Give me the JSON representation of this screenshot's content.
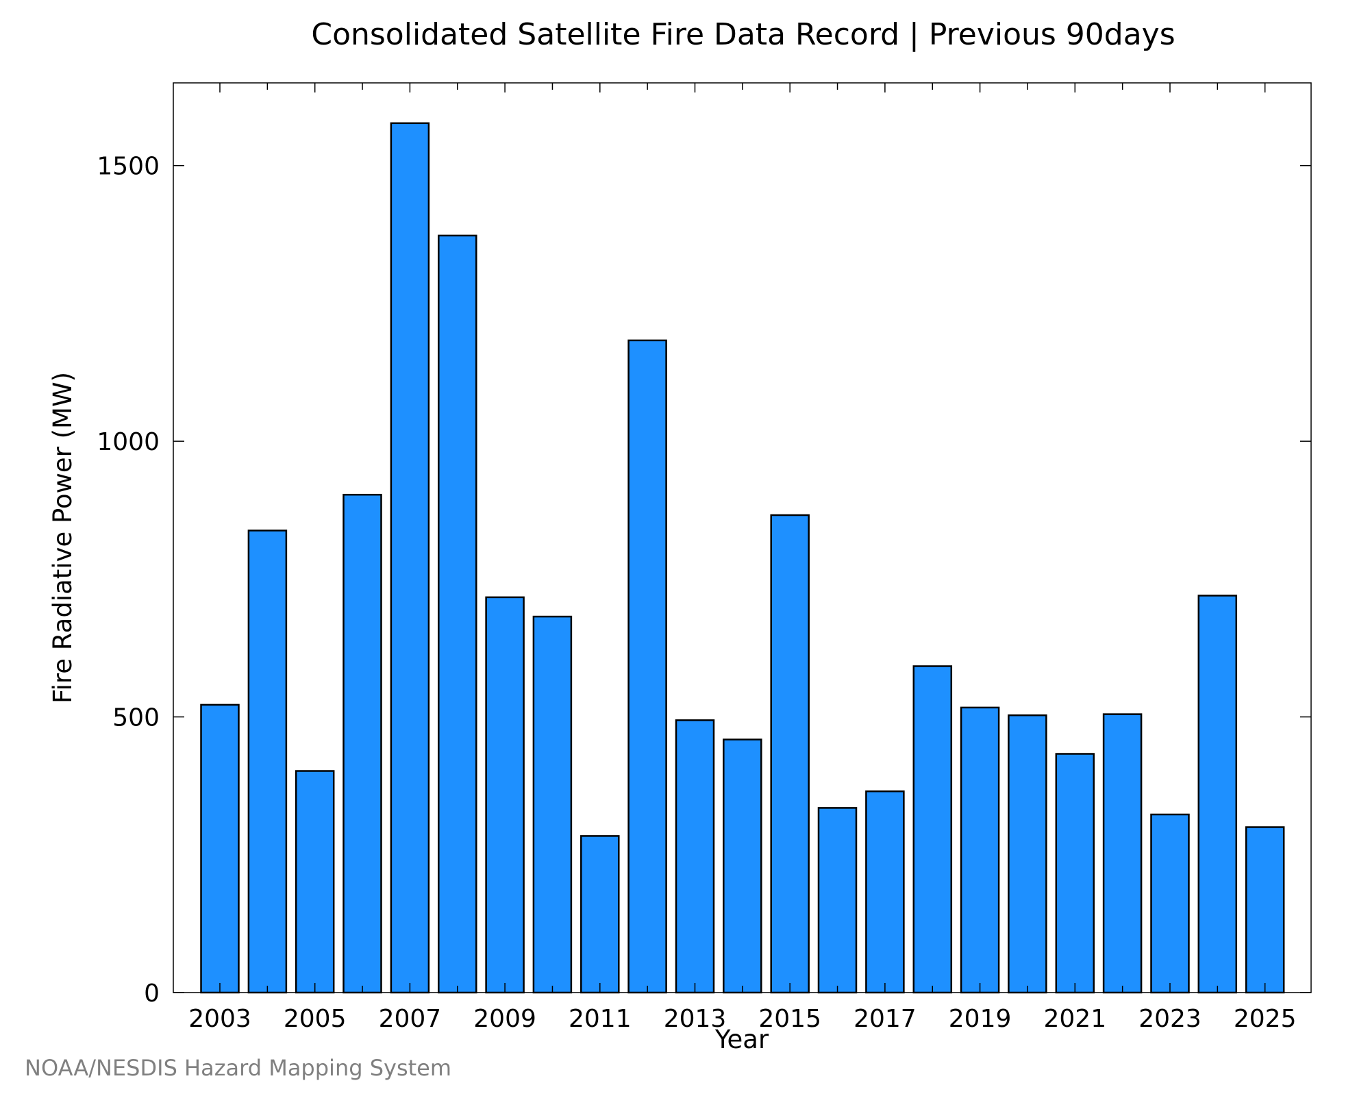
{
  "chart_data": {
    "type": "bar",
    "title": "Consolidated Satellite Fire Data Record | Previous 90days",
    "xlabel": "Year",
    "ylabel": "Fire Radiative Power (MW)",
    "categories": [
      "2003",
      "2004",
      "2005",
      "2006",
      "2007",
      "2008",
      "2009",
      "2010",
      "2011",
      "2012",
      "2013",
      "2014",
      "2015",
      "2016",
      "2017",
      "2018",
      "2019",
      "2020",
      "2021",
      "2022",
      "2023",
      "2024",
      "2025"
    ],
    "values": [
      522,
      838,
      402,
      903,
      1577,
      1373,
      717,
      682,
      284,
      1183,
      494,
      459,
      866,
      335,
      365,
      592,
      517,
      503,
      433,
      505,
      323,
      720,
      300
    ],
    "xtick_labels": [
      "2003",
      "2005",
      "2007",
      "2009",
      "2011",
      "2013",
      "2015",
      "2017",
      "2019",
      "2021",
      "2023",
      "2025"
    ],
    "yticks": [
      0,
      500,
      1000,
      1500
    ],
    "ylim": [
      0,
      1650
    ],
    "grid": false,
    "legend": "none",
    "bar_color": "#1E90FF",
    "edge_color": "#000000"
  },
  "credit": "NOAA/NESDIS Hazard Mapping System"
}
